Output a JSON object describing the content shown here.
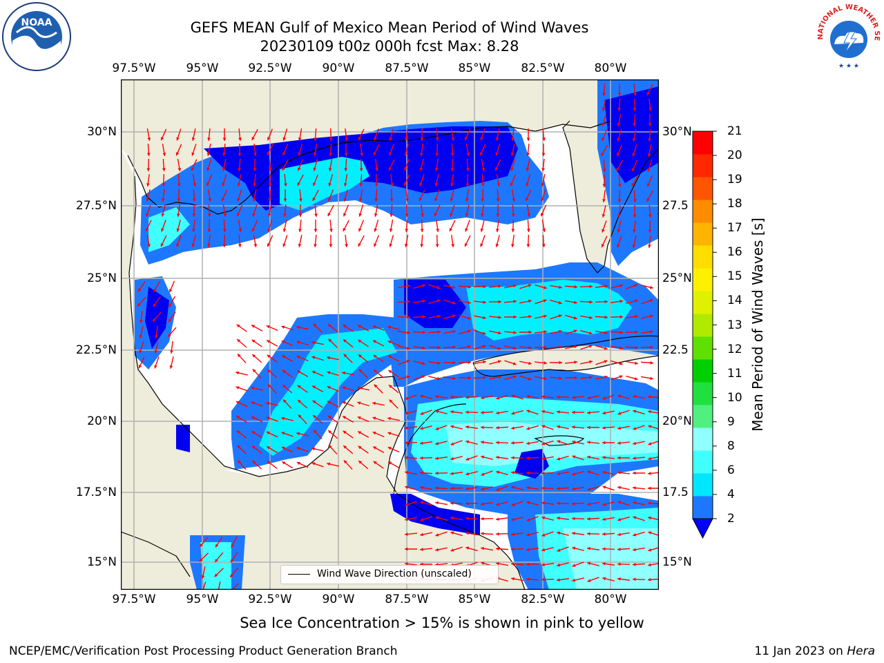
{
  "header": {
    "title_line1": "GEFS MEAN Gulf of Mexico Mean Period of Wind Waves",
    "title_line2": "20230109 t00z 000h fcst   Max: 8.28"
  },
  "logos": {
    "left": "NOAA",
    "right_text": "NATIONAL WEATHER SERVICE"
  },
  "map": {
    "lon_labels": [
      "97.5°W",
      "95°W",
      "92.5°W",
      "90°W",
      "87.5°W",
      "85°W",
      "82.5°W",
      "80°W"
    ],
    "lat_labels_left": [
      "30°N",
      "27.5°N",
      "25°N",
      "22.5°N",
      "20°N",
      "17.5°N",
      "15°N"
    ],
    "lat_labels_right": [
      "30°N",
      "27.5",
      "25°N",
      "22.5",
      "20°N",
      "17.5",
      "15°N"
    ],
    "legend_label": "Wind Wave Direction (unscaled)",
    "colors": {
      "land": "#eeecda",
      "ocean_low": "#1e78ff",
      "ocean_mid": "#00f0ff",
      "ocean_deep": "#0000f0",
      "arrows": "#ff0000"
    }
  },
  "colorbar": {
    "label": "Mean Period of Wind Waves [s]",
    "ticks": [
      "21",
      "20",
      "19",
      "18",
      "17",
      "16",
      "15",
      "14",
      "13",
      "12",
      "11",
      "10",
      "9",
      "8",
      "6",
      "4",
      "2"
    ],
    "colors": [
      "#0000ff",
      "#1e78ff",
      "#00e6ff",
      "#40ffff",
      "#90ffff",
      "#50f080",
      "#20e040",
      "#00d000",
      "#60e000",
      "#b0ea00",
      "#dff000",
      "#fff000",
      "#ffdd00",
      "#ffb400",
      "#ff8c00",
      "#ff5500",
      "#ff2800",
      "#ff0000"
    ]
  },
  "note": "Sea Ice Concentration > 15% is shown in pink to yellow",
  "footer": {
    "left": "NCEP/EMC/Verification Post Processing Product Generation Branch",
    "right_prefix": "11 Jan 2023 on ",
    "right_host": "Hera"
  }
}
